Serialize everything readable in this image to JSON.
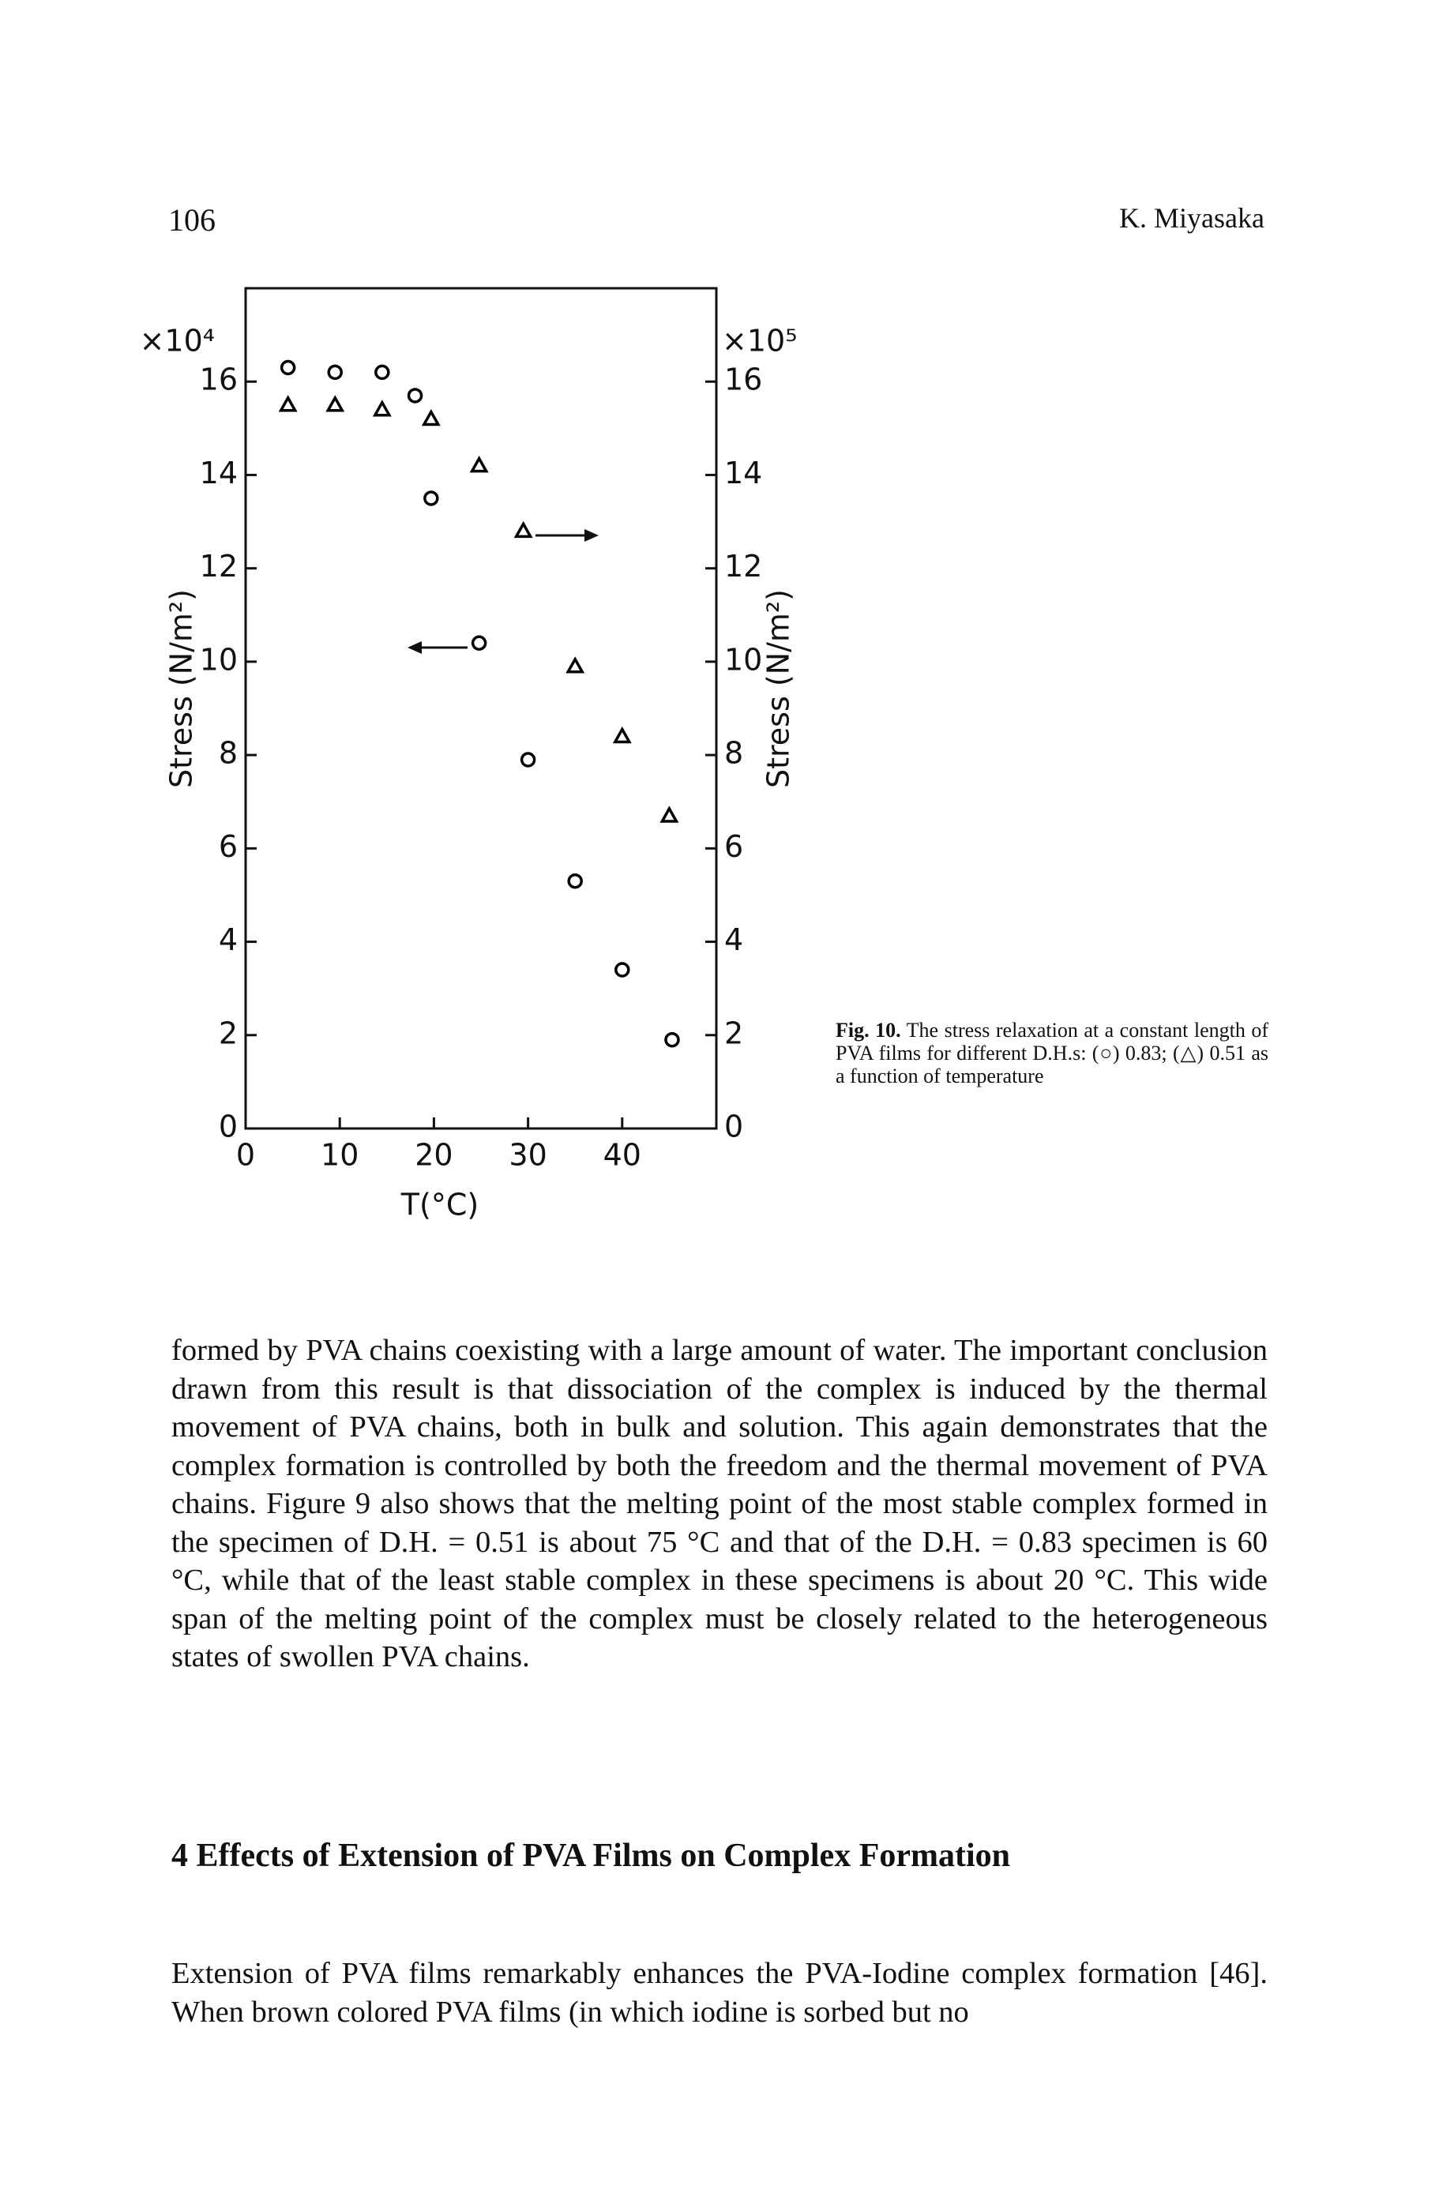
{
  "header": {
    "page_number": "106",
    "author": "K. Miyasaka"
  },
  "chart_data": {
    "type": "scatter",
    "xlabel": "T(°C)",
    "ylabel": "Stress (N/m²)",
    "y2label": "Stress (N/m²)",
    "y_multiplier": "×10⁴",
    "y2_multiplier": "×10⁵",
    "xlim": [
      0,
      50
    ],
    "xticks": [
      0,
      10,
      20,
      30,
      40
    ],
    "ylim": [
      0,
      18
    ],
    "yticks": [
      0,
      2,
      4,
      6,
      8,
      10,
      12,
      14,
      16
    ],
    "y2lim": [
      0,
      18
    ],
    "y2ticks": [
      0,
      2,
      4,
      6,
      8,
      10,
      12,
      14,
      16
    ],
    "series": [
      {
        "marker": "circle",
        "color": "#000000",
        "x": [
          4.5,
          9.5,
          14.5,
          18,
          19.7,
          24.8,
          30,
          35,
          40,
          45.3
        ],
        "values": [
          16.3,
          16.2,
          16.2,
          15.7,
          13.5,
          10.4,
          7.9,
          5.3,
          3.4,
          1.9
        ]
      },
      {
        "marker": "triangle",
        "color": "#000000",
        "axis": "y2",
        "x": [
          4.5,
          9.5,
          14.5,
          19.7,
          24.8,
          29.5,
          35,
          40,
          45
        ],
        "values": [
          15.5,
          15.5,
          15.4,
          15.2,
          14.2,
          12.8,
          9.9,
          8.4,
          6.7
        ]
      }
    ]
  },
  "caption": {
    "label": "Fig. 10.",
    "text": "The stress relaxation at a constant length of PVA films for different D.H.s: (○) 0.83; (△) 0.51 as a function of temperature"
  },
  "paragraphs": [
    "formed by PVA chains coexisting with a large amount of water. The important conclusion drawn from this result is that dissociation of the complex is induced by the thermal movement of PVA chains, both in bulk and solution. This again demonstrates that the complex formation is controlled by both the freedom and the thermal movement of PVA chains. Figure 9 also shows that the melting point of the most stable complex formed in the specimen of D.H. = 0.51 is about 75 °C and that of the D.H. = 0.83 specimen is 60 °C, while that of the least stable complex in these specimens is about 20 °C. This wide span of the melting point of the complex must be closely related to the heterogeneous states of swollen PVA chains."
  ],
  "section": {
    "heading": "4 Effects of Extension of PVA Films on Complex Formation",
    "paragraphs": [
      "Extension of PVA films remarkably enhances the PVA-Iodine complex formation [46]. When brown colored PVA films (in which iodine is sorbed but no"
    ]
  }
}
